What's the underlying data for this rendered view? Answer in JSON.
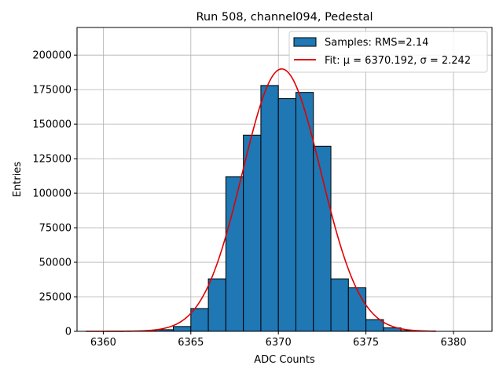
{
  "chart_data": {
    "type": "bar",
    "title": "Run 508, channel094, Pedestal",
    "xlabel": "ADC Counts",
    "ylabel": "Entries",
    "xlim": [
      6358.5,
      6382.2
    ],
    "ylim": [
      0,
      220000
    ],
    "xticks": [
      6360,
      6365,
      6370,
      6375,
      6380
    ],
    "yticks": [
      0,
      25000,
      50000,
      75000,
      100000,
      125000,
      150000,
      175000,
      200000
    ],
    "grid": true,
    "legend_position": "top-right",
    "histogram": {
      "name": "Samples: RMS=2.14",
      "color": "#1f77b4",
      "bin_width": 1,
      "bin_starts": [
        6362,
        6363,
        6364,
        6365,
        6366,
        6367,
        6368,
        6369,
        6370,
        6371,
        6372,
        6373,
        6374,
        6375,
        6376,
        6377
      ],
      "values": [
        200,
        1200,
        3500,
        16500,
        38000,
        112000,
        142000,
        178000,
        168500,
        173000,
        134000,
        38000,
        31500,
        8500,
        2500,
        500
      ]
    },
    "fit": {
      "name": "Fit: μ = 6370.192, σ = 2.242",
      "color": "#e00000",
      "mu": 6370.192,
      "sigma": 2.242,
      "amplitude": 190000,
      "x_range": [
        6359,
        6379
      ]
    }
  }
}
